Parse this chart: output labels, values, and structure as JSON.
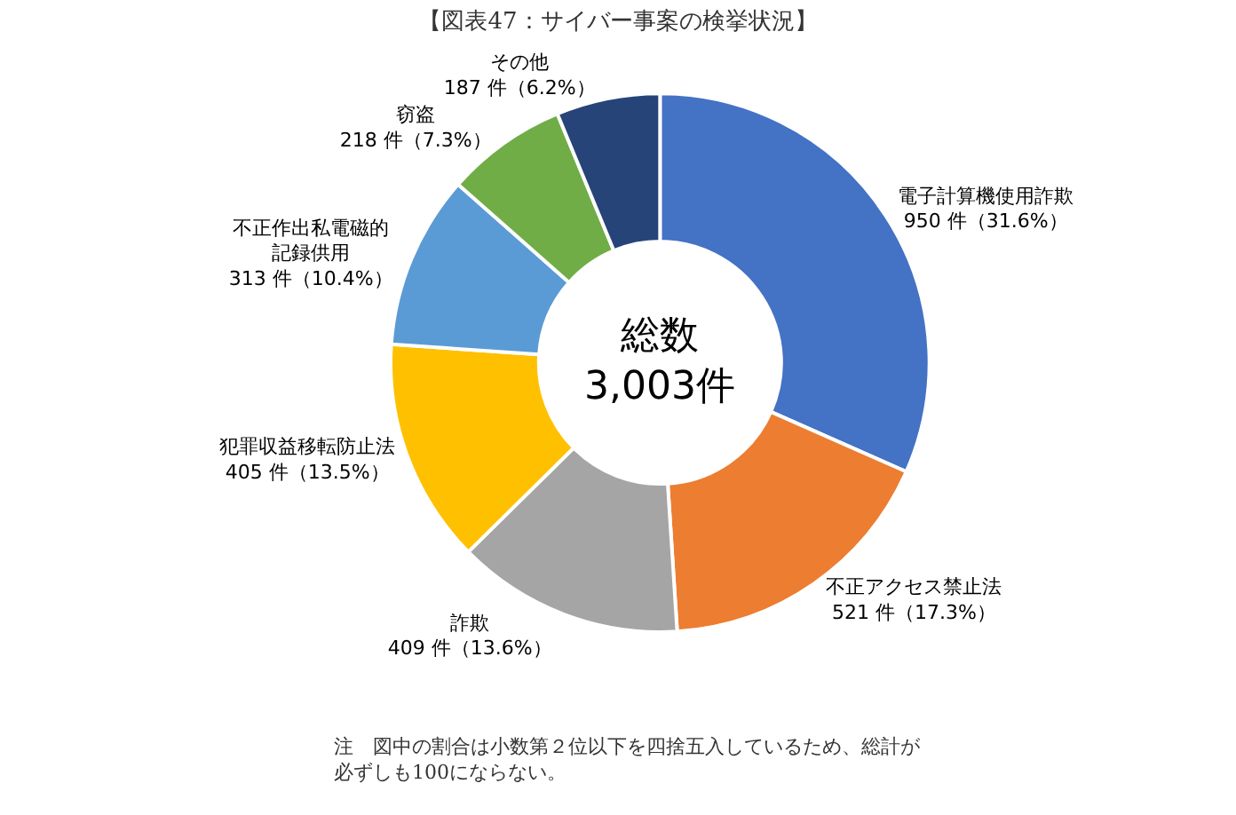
{
  "chart_data": {
    "type": "donut",
    "title": "【図表47：サイバー事案の検挙状況】",
    "categories": [
      "電子計算機使用詐欺",
      "不正アクセス禁止法",
      "詐欺",
      "犯罪収益移転防止法",
      "不正作出私電磁的記録供用",
      "窃盗",
      "その他"
    ],
    "values": [
      950,
      521,
      409,
      405,
      313,
      218,
      187
    ],
    "value_labels": [
      "950 件（31.6%）",
      "521 件（17.3%）",
      "409 件（13.6%）",
      "405 件（13.5%）",
      "313 件（10.4%）",
      "218 件（7.3%）",
      "187 件（6.2%）"
    ],
    "colors": [
      "#4472c4",
      "#ed7d31",
      "#a5a5a5",
      "#ffc000",
      "#5b9bd5",
      "#70ad47",
      "#264478"
    ],
    "annotations": [
      "総数\n3,003件",
      "注　図中の割合は小数第２位以下を四捨五入しているため、総計が必ずしも100にならない。"
    ],
    "legend": false
  }
}
